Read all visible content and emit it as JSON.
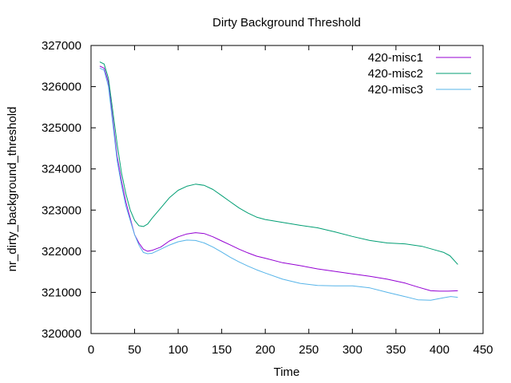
{
  "chart_data": {
    "type": "line",
    "title": "Dirty Background Threshold",
    "xlabel": "Time",
    "ylabel": "nr_dirty_background_threshold",
    "xlim": [
      0,
      450
    ],
    "ylim": [
      320000,
      327000
    ],
    "xticks": [
      "0",
      "50",
      "100",
      "150",
      "200",
      "250",
      "300",
      "350",
      "400",
      "450"
    ],
    "yticks": [
      "320000",
      "321000",
      "322000",
      "323000",
      "324000",
      "325000",
      "326000",
      "327000"
    ],
    "grid": false,
    "legend_position": "top-right",
    "series": [
      {
        "name": "420-misc1",
        "color": "#9400d3",
        "points": [
          [
            10,
            326500
          ],
          [
            15,
            326450
          ],
          [
            20,
            326100
          ],
          [
            25,
            325200
          ],
          [
            30,
            324300
          ],
          [
            35,
            323700
          ],
          [
            40,
            323200
          ],
          [
            45,
            322800
          ],
          [
            50,
            322400
          ],
          [
            55,
            322200
          ],
          [
            60,
            322050
          ],
          [
            65,
            322000
          ],
          [
            70,
            322020
          ],
          [
            80,
            322100
          ],
          [
            90,
            322250
          ],
          [
            100,
            322350
          ],
          [
            110,
            322420
          ],
          [
            120,
            322450
          ],
          [
            130,
            322430
          ],
          [
            140,
            322350
          ],
          [
            150,
            322250
          ],
          [
            160,
            322150
          ],
          [
            170,
            322050
          ],
          [
            180,
            321960
          ],
          [
            190,
            321880
          ],
          [
            200,
            321830
          ],
          [
            220,
            321720
          ],
          [
            240,
            321650
          ],
          [
            260,
            321570
          ],
          [
            280,
            321510
          ],
          [
            300,
            321450
          ],
          [
            320,
            321390
          ],
          [
            340,
            321320
          ],
          [
            360,
            321230
          ],
          [
            375,
            321130
          ],
          [
            390,
            321040
          ],
          [
            400,
            321030
          ],
          [
            410,
            321030
          ],
          [
            421,
            321040
          ]
        ]
      },
      {
        "name": "420-misc2",
        "color": "#009e73",
        "points": [
          [
            10,
            326600
          ],
          [
            15,
            326550
          ],
          [
            20,
            326200
          ],
          [
            25,
            325400
          ],
          [
            30,
            324600
          ],
          [
            35,
            323900
          ],
          [
            40,
            323400
          ],
          [
            45,
            323000
          ],
          [
            50,
            322750
          ],
          [
            55,
            322620
          ],
          [
            60,
            322600
          ],
          [
            65,
            322660
          ],
          [
            70,
            322800
          ],
          [
            80,
            323050
          ],
          [
            90,
            323300
          ],
          [
            100,
            323480
          ],
          [
            110,
            323580
          ],
          [
            120,
            323630
          ],
          [
            130,
            323600
          ],
          [
            140,
            323500
          ],
          [
            150,
            323350
          ],
          [
            160,
            323200
          ],
          [
            170,
            323050
          ],
          [
            180,
            322930
          ],
          [
            190,
            322830
          ],
          [
            200,
            322770
          ],
          [
            220,
            322700
          ],
          [
            240,
            322630
          ],
          [
            260,
            322570
          ],
          [
            280,
            322470
          ],
          [
            300,
            322360
          ],
          [
            320,
            322260
          ],
          [
            340,
            322200
          ],
          [
            360,
            322180
          ],
          [
            380,
            322120
          ],
          [
            395,
            322030
          ],
          [
            405,
            321970
          ],
          [
            412,
            321890
          ],
          [
            421,
            321680
          ]
        ]
      },
      {
        "name": "420-misc3",
        "color": "#56b4e9",
        "points": [
          [
            10,
            326450
          ],
          [
            15,
            326400
          ],
          [
            20,
            326000
          ],
          [
            25,
            325100
          ],
          [
            30,
            324200
          ],
          [
            35,
            323600
          ],
          [
            40,
            323100
          ],
          [
            45,
            322750
          ],
          [
            50,
            322400
          ],
          [
            55,
            322150
          ],
          [
            60,
            321970
          ],
          [
            65,
            321940
          ],
          [
            70,
            321950
          ],
          [
            80,
            322050
          ],
          [
            90,
            322150
          ],
          [
            100,
            322230
          ],
          [
            110,
            322270
          ],
          [
            120,
            322260
          ],
          [
            130,
            322200
          ],
          [
            140,
            322100
          ],
          [
            150,
            321980
          ],
          [
            160,
            321850
          ],
          [
            170,
            321740
          ],
          [
            180,
            321640
          ],
          [
            190,
            321550
          ],
          [
            200,
            321470
          ],
          [
            220,
            321320
          ],
          [
            240,
            321220
          ],
          [
            260,
            321170
          ],
          [
            280,
            321160
          ],
          [
            300,
            321160
          ],
          [
            320,
            321110
          ],
          [
            340,
            321000
          ],
          [
            360,
            320900
          ],
          [
            375,
            320820
          ],
          [
            390,
            320810
          ],
          [
            405,
            320870
          ],
          [
            413,
            320900
          ],
          [
            421,
            320880
          ]
        ]
      }
    ]
  }
}
